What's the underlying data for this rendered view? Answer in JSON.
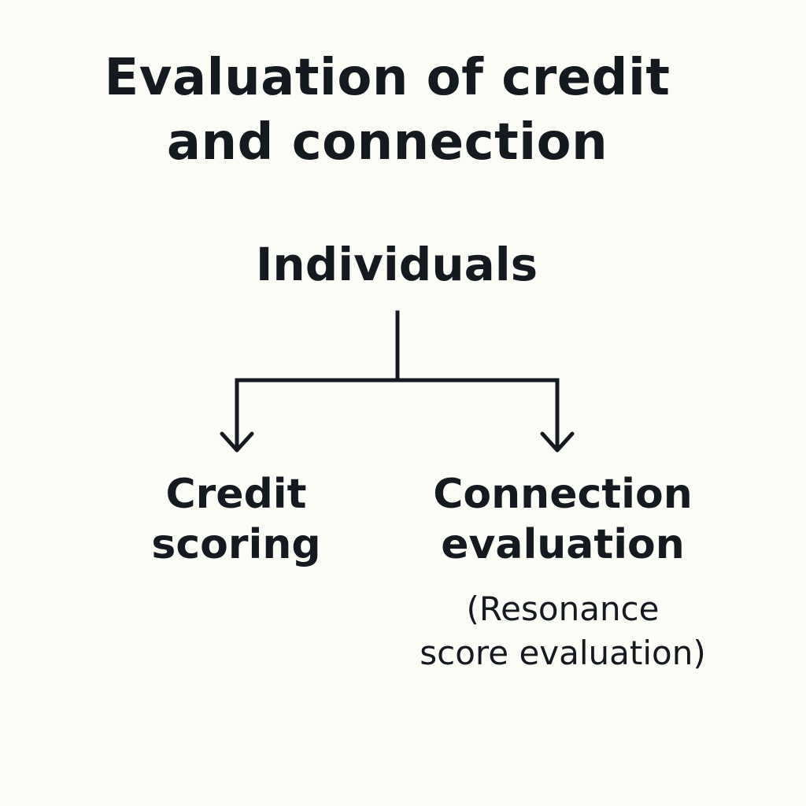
{
  "diagram": {
    "title_lines": [
      "Evaluation of credit",
      "and connection"
    ],
    "root": "Individuals",
    "branches": [
      {
        "label_lines": [
          "Credit",
          "scoring"
        ]
      },
      {
        "label_lines": [
          "Connection",
          "evaluation"
        ],
        "note_lines": [
          "(Resonance",
          "score evaluation)"
        ]
      }
    ],
    "colors": {
      "background": "#fcfcf7",
      "ink": "#141a20"
    }
  }
}
